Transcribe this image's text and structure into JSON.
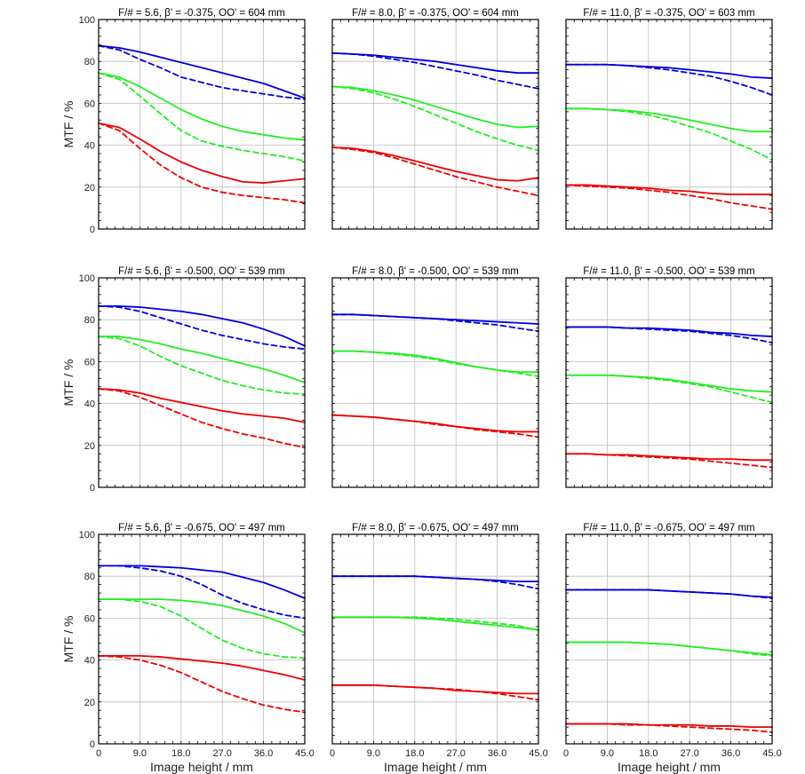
{
  "chart_data": {
    "type": "line",
    "layout": "3x3 grid",
    "xlabel": "Image height / mm",
    "ylabel": "MTF / %",
    "xlim": [
      0,
      45
    ],
    "ylim": [
      0,
      100
    ],
    "xticks": [
      0,
      9,
      18,
      27,
      36,
      45
    ],
    "xtick_labels": [
      "0",
      "9.0",
      "18.0",
      "27.0",
      "36.0",
      "45.0"
    ],
    "yticks": [
      0,
      20,
      40,
      60,
      80,
      100
    ],
    "ytick_labels": [
      "0",
      "20",
      "40",
      "60",
      "80",
      "100"
    ],
    "grid": true,
    "x": [
      0,
      4.5,
      9,
      13.5,
      18,
      22.5,
      27,
      31.5,
      36,
      40.5,
      45
    ],
    "colors": {
      "blue": "#0000dd",
      "green": "#22ee22",
      "red": "#ee0000"
    },
    "panels": [
      {
        "title": "F/# = 5.6, β' = -0.375, OO' = 604 mm",
        "series": [
          {
            "color": "blue",
            "style": "solid",
            "values": [
              87.5,
              86.5,
              84.5,
              82,
              79.5,
              77,
              74.5,
              72,
              69.5,
              66,
              62.5
            ]
          },
          {
            "color": "blue",
            "style": "dashed",
            "values": [
              87.5,
              85.5,
              81,
              77,
              72.5,
              70,
              67.5,
              66,
              64.5,
              63,
              62
            ]
          },
          {
            "color": "green",
            "style": "solid",
            "values": [
              74.5,
              72.5,
              68,
              62.5,
              57,
              52.5,
              49,
              46.5,
              45,
              43.5,
              42.5
            ]
          },
          {
            "color": "green",
            "style": "dashed",
            "values": [
              74.5,
              71.5,
              63.5,
              55,
              47,
              42,
              39.5,
              37.5,
              36,
              34.5,
              32.5
            ]
          },
          {
            "color": "red",
            "style": "solid",
            "values": [
              50.5,
              48.5,
              43,
              37,
              32,
              28,
              25,
              22.5,
              22,
              23,
              24
            ]
          },
          {
            "color": "red",
            "style": "dashed",
            "values": [
              50.5,
              47,
              38.5,
              30.5,
              24.5,
              20,
              17.5,
              16,
              15,
              14,
              12.5
            ]
          }
        ]
      },
      {
        "title": "F/# = 8.0, β' = -0.375, OO' = 604 mm",
        "series": [
          {
            "color": "blue",
            "style": "solid",
            "values": [
              84,
              83.5,
              83,
              82,
              81,
              80,
              78.5,
              77,
              75.5,
              74.5,
              74.5
            ]
          },
          {
            "color": "blue",
            "style": "dashed",
            "values": [
              84,
              83.5,
              82.5,
              81,
              79.5,
              77.5,
              75.5,
              73.5,
              71,
              69,
              67
            ]
          },
          {
            "color": "green",
            "style": "solid",
            "values": [
              68,
              67.5,
              66,
              64,
              61.5,
              58.5,
              55.5,
              52.5,
              50,
              48.5,
              49
            ]
          },
          {
            "color": "green",
            "style": "dashed",
            "values": [
              68,
              67,
              65,
              62,
              58.5,
              54.5,
              50.5,
              46.5,
              43,
              40,
              37.5
            ]
          },
          {
            "color": "red",
            "style": "solid",
            "values": [
              39,
              38.5,
              37,
              35,
              32.5,
              30,
              27.5,
              25.5,
              23.5,
              23,
              24.5
            ]
          },
          {
            "color": "red",
            "style": "dashed",
            "values": [
              39,
              38,
              36.5,
              34,
              31,
              28,
              25,
              22.5,
              20,
              18,
              16
            ]
          }
        ]
      },
      {
        "title": "F/# = 11.0, β' = -0.375, OO' = 603 mm",
        "series": [
          {
            "color": "blue",
            "style": "solid",
            "values": [
              78.5,
              78.5,
              78.5,
              78,
              77.5,
              77,
              76,
              75,
              74,
              72.5,
              72
            ]
          },
          {
            "color": "blue",
            "style": "dashed",
            "values": [
              78.5,
              78.5,
              78.5,
              78,
              77,
              76,
              74.5,
              73,
              70.5,
              67.5,
              64
            ]
          },
          {
            "color": "green",
            "style": "solid",
            "values": [
              57.5,
              57.5,
              57,
              56.5,
              55.5,
              54,
              52,
              50,
              48,
              46.5,
              46.5
            ]
          },
          {
            "color": "green",
            "style": "dashed",
            "values": [
              57.5,
              57.5,
              57,
              56,
              54.5,
              52,
              49,
              46,
              42,
              38,
              33
            ]
          },
          {
            "color": "red",
            "style": "solid",
            "values": [
              21,
              21,
              20.5,
              20,
              19.5,
              18.5,
              18,
              17,
              16.5,
              16.5,
              16.5
            ]
          },
          {
            "color": "red",
            "style": "dashed",
            "values": [
              21,
              20.5,
              20,
              19.5,
              18.5,
              17.5,
              16,
              14.5,
              12.5,
              11,
              9.5
            ]
          }
        ]
      },
      {
        "title": "F/# = 5.6, β' = -0.500, OO' = 539 mm",
        "series": [
          {
            "color": "blue",
            "style": "solid",
            "values": [
              86.5,
              86.5,
              86,
              85,
              84,
              82.5,
              80.5,
              78.5,
              75.5,
              72,
              67.5
            ]
          },
          {
            "color": "blue",
            "style": "dashed",
            "values": [
              86.5,
              86,
              84,
              81,
              78,
              75,
              72.5,
              70.5,
              68.5,
              67,
              66
            ]
          },
          {
            "color": "green",
            "style": "solid",
            "values": [
              72,
              72,
              70.5,
              68.5,
              66,
              64,
              61.5,
              59,
              56.5,
              53.5,
              50
            ]
          },
          {
            "color": "green",
            "style": "dashed",
            "values": [
              72,
              71,
              67.5,
              62.5,
              58,
              54.5,
              51,
              48.5,
              46.5,
              45,
              44.5
            ]
          },
          {
            "color": "red",
            "style": "solid",
            "values": [
              47,
              46.5,
              45,
              42.5,
              40.5,
              38.5,
              36.5,
              35,
              34,
              33,
              31
            ]
          },
          {
            "color": "red",
            "style": "dashed",
            "values": [
              47,
              46,
              43,
              39,
              35,
              31,
              28,
              25.5,
              23.5,
              21,
              19
            ]
          }
        ]
      },
      {
        "title": "F/# = 8.0, β' = -0.500, OO' = 539 mm",
        "series": [
          {
            "color": "blue",
            "style": "solid",
            "values": [
              82.5,
              82.5,
              82,
              81.5,
              81,
              80.5,
              80,
              79.5,
              79,
              78.5,
              78
            ]
          },
          {
            "color": "blue",
            "style": "dashed",
            "values": [
              82.5,
              82.5,
              82,
              81.5,
              81,
              80.5,
              79.5,
              78.5,
              77.5,
              76,
              74.5
            ]
          },
          {
            "color": "green",
            "style": "solid",
            "values": [
              65,
              65,
              64.5,
              64,
              63,
              61.5,
              59.5,
              57.5,
              56,
              55,
              55
            ]
          },
          {
            "color": "green",
            "style": "dashed",
            "values": [
              65,
              65,
              64.5,
              63.5,
              62.5,
              61,
              59,
              57.5,
              56,
              54.5,
              53
            ]
          },
          {
            "color": "red",
            "style": "solid",
            "values": [
              34.5,
              34,
              33.5,
              32.5,
              31.5,
              30.5,
              29,
              28,
              27,
              26.5,
              26.5
            ]
          },
          {
            "color": "red",
            "style": "dashed",
            "values": [
              34.5,
              34,
              33.5,
              32.5,
              31.5,
              30,
              29,
              27.5,
              26.5,
              25.5,
              24
            ]
          }
        ]
      },
      {
        "title": "F/# = 11.0, β' = -0.500, OO' = 539 mm",
        "series": [
          {
            "color": "blue",
            "style": "solid",
            "values": [
              76.5,
              76.5,
              76.5,
              76,
              76,
              75.5,
              75,
              74,
              73.5,
              72.5,
              72
            ]
          },
          {
            "color": "blue",
            "style": "dashed",
            "values": [
              76.5,
              76.5,
              76.5,
              76,
              75.5,
              75,
              74.5,
              73.5,
              72.5,
              71,
              69
            ]
          },
          {
            "color": "green",
            "style": "solid",
            "values": [
              53.5,
              53.5,
              53.5,
              53,
              52.5,
              51.5,
              50,
              48.5,
              47,
              46,
              45.5
            ]
          },
          {
            "color": "green",
            "style": "dashed",
            "values": [
              53.5,
              53.5,
              53.5,
              53,
              52,
              51,
              49.5,
              48,
              45.5,
              43,
              40.5
            ]
          },
          {
            "color": "red",
            "style": "solid",
            "values": [
              16,
              16,
              15.5,
              15.5,
              15,
              14.5,
              14,
              13.5,
              13.5,
              13,
              13
            ]
          },
          {
            "color": "red",
            "style": "dashed",
            "values": [
              16,
              16,
              15.5,
              15,
              14.5,
              14,
              13.5,
              12.5,
              11.5,
              10.5,
              9.5
            ]
          }
        ]
      },
      {
        "title": "F/# = 5.6, β' = -0.675, OO' = 497 mm",
        "series": [
          {
            "color": "blue",
            "style": "solid",
            "values": [
              85,
              85,
              85,
              84.5,
              84,
              83,
              82,
              79.5,
              77,
              73.5,
              69.5
            ]
          },
          {
            "color": "blue",
            "style": "dashed",
            "values": [
              85,
              85,
              84,
              82.5,
              80,
              76,
              71,
              67,
              64,
              61.5,
              60
            ]
          },
          {
            "color": "green",
            "style": "solid",
            "values": [
              69,
              69,
              69,
              69,
              68.5,
              67.5,
              66,
              63.5,
              61,
              57.5,
              53
            ]
          },
          {
            "color": "green",
            "style": "dashed",
            "values": [
              69,
              69,
              68,
              65.5,
              61,
              55,
              49.5,
              45.5,
              43,
              41.5,
              41
            ]
          },
          {
            "color": "red",
            "style": "solid",
            "values": [
              42,
              42,
              42,
              41.5,
              40.5,
              39.5,
              38.5,
              37,
              35,
              33,
              30.5
            ]
          },
          {
            "color": "red",
            "style": "dashed",
            "values": [
              42,
              41.5,
              40,
              37.5,
              34,
              29.5,
              25,
              21.5,
              18.5,
              16.5,
              15
            ]
          }
        ]
      },
      {
        "title": "F/# = 8.0, β' = -0.675, OO' = 497 mm",
        "series": [
          {
            "color": "blue",
            "style": "solid",
            "values": [
              80,
              80,
              80,
              80,
              80,
              79.5,
              79,
              78.5,
              78,
              77.5,
              77.5
            ]
          },
          {
            "color": "blue",
            "style": "dashed",
            "values": [
              80,
              80,
              80,
              80,
              80,
              79.5,
              79,
              78.5,
              77.5,
              76,
              74
            ]
          },
          {
            "color": "green",
            "style": "solid",
            "values": [
              60.5,
              60.5,
              60.5,
              60.5,
              60,
              59.5,
              58.5,
              57.5,
              56.5,
              55.5,
              54.5
            ]
          },
          {
            "color": "green",
            "style": "dashed",
            "values": [
              60.5,
              60.5,
              60.5,
              60.5,
              60.5,
              60,
              59.5,
              58.5,
              57.5,
              56.5,
              54
            ]
          },
          {
            "color": "red",
            "style": "solid",
            "values": [
              28,
              28,
              28,
              27.5,
              27,
              26.5,
              25.5,
              25,
              24.5,
              24,
              24
            ]
          },
          {
            "color": "red",
            "style": "dashed",
            "values": [
              28,
              28,
              28,
              27.5,
              27,
              26.5,
              26,
              25,
              24,
              22.5,
              21
            ]
          }
        ]
      },
      {
        "title": "F/# = 11.0, β' = -0.675, OO' = 497 mm",
        "series": [
          {
            "color": "blue",
            "style": "solid",
            "values": [
              73.5,
              73.5,
              73.5,
              73.5,
              73.5,
              73,
              72.5,
              72,
              71.5,
              70.5,
              70
            ]
          },
          {
            "color": "blue",
            "style": "dashed",
            "values": [
              73.5,
              73.5,
              73.5,
              73.5,
              73.5,
              73,
              72.5,
              72,
              71.5,
              70.5,
              69.5
            ]
          },
          {
            "color": "green",
            "style": "solid",
            "values": [
              48.5,
              48.5,
              48.5,
              48.5,
              48,
              47.5,
              46.5,
              45.5,
              44.5,
              43.5,
              42.5
            ]
          },
          {
            "color": "green",
            "style": "dashed",
            "values": [
              48.5,
              48.5,
              48.5,
              48.5,
              48,
              47.5,
              46.5,
              45.5,
              44.5,
              43,
              42
            ]
          },
          {
            "color": "red",
            "style": "solid",
            "values": [
              9.5,
              9.5,
              9.5,
              9.5,
              9,
              9,
              9,
              8.5,
              8.5,
              8,
              8
            ]
          },
          {
            "color": "red",
            "style": "dashed",
            "values": [
              9.5,
              9.5,
              9.5,
              9,
              9,
              8.5,
              8,
              7.5,
              7,
              6.5,
              5.5
            ]
          }
        ]
      }
    ]
  }
}
